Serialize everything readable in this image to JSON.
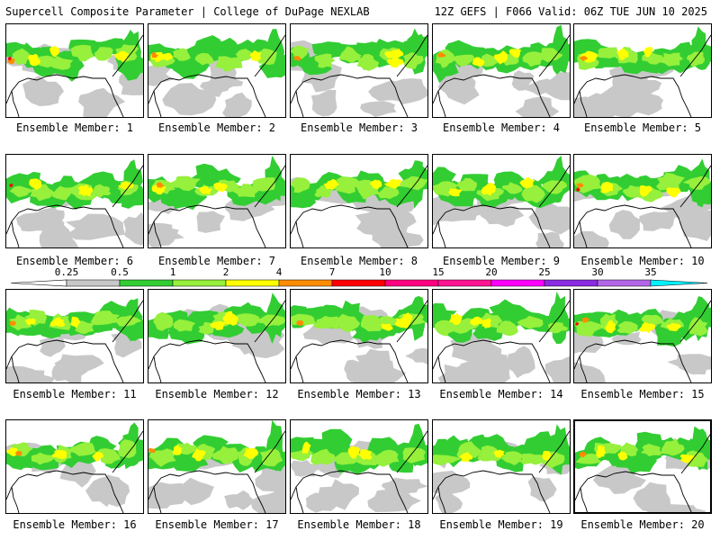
{
  "header": {
    "left": "Supercell Composite Parameter | College of DuPage NEXLAB",
    "right": "12Z GEFS | F066 Valid: 06Z TUE JUN 10 2025"
  },
  "members": [
    {
      "label": "Ensemble Member: 1",
      "bold": false
    },
    {
      "label": "Ensemble Member: 2",
      "bold": false
    },
    {
      "label": "Ensemble Member: 3",
      "bold": false
    },
    {
      "label": "Ensemble Member: 4",
      "bold": false
    },
    {
      "label": "Ensemble Member: 5",
      "bold": false
    },
    {
      "label": "Ensemble Member: 6",
      "bold": false
    },
    {
      "label": "Ensemble Member: 7",
      "bold": false
    },
    {
      "label": "Ensemble Member: 8",
      "bold": false
    },
    {
      "label": "Ensemble Member: 9",
      "bold": false
    },
    {
      "label": "Ensemble Member: 10",
      "bold": false
    },
    {
      "label": "Ensemble Member: 11",
      "bold": false
    },
    {
      "label": "Ensemble Member: 12",
      "bold": false
    },
    {
      "label": "Ensemble Member: 13",
      "bold": false
    },
    {
      "label": "Ensemble Member: 14",
      "bold": false
    },
    {
      "label": "Ensemble Member: 15",
      "bold": false
    },
    {
      "label": "Ensemble Member: 16",
      "bold": false
    },
    {
      "label": "Ensemble Member: 17",
      "bold": false
    },
    {
      "label": "Ensemble Member: 18",
      "bold": false
    },
    {
      "label": "Ensemble Member: 19",
      "bold": false
    },
    {
      "label": "Ensemble Member: 20",
      "bold": true
    }
  ],
  "colorbar": {
    "labels": [
      "0.25",
      "0.5",
      "1",
      "2",
      "4",
      "7",
      "10",
      "15",
      "20",
      "25",
      "30",
      "35"
    ],
    "colors": [
      "#c8c8c8",
      "#32cd32",
      "#96f03c",
      "#ffff00",
      "#ff8c00",
      "#ff0000",
      "#ff0080",
      "#ff1493",
      "#ff00ff",
      "#8a2be2",
      "#b266e8",
      "#00f0ff"
    ]
  }
}
